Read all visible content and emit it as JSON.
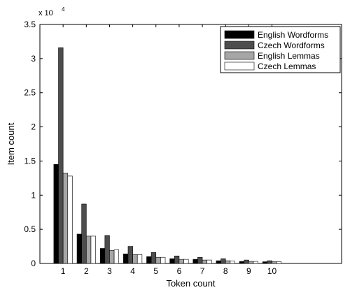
{
  "chart_data": {
    "type": "bar",
    "categories": [
      "1",
      "2",
      "3",
      "4",
      "5",
      "6",
      "7",
      "8",
      "9",
      "10"
    ],
    "series": [
      {
        "name": "English Wordforms",
        "color": "#000000",
        "values": [
          14500,
          4300,
          2200,
          1400,
          1000,
          700,
          600,
          400,
          300,
          250
        ]
      },
      {
        "name": "Czech Wordforms",
        "color": "#4d4d4d",
        "values": [
          31600,
          8700,
          4100,
          2500,
          1600,
          1100,
          900,
          700,
          500,
          400
        ]
      },
      {
        "name": "English Lemmas",
        "color": "#a6a6a6",
        "values": [
          13200,
          4000,
          1900,
          1300,
          900,
          600,
          500,
          400,
          300,
          250
        ]
      },
      {
        "name": "Czech Lemmas",
        "color": "#ffffff",
        "values": [
          12800,
          4000,
          2000,
          1300,
          900,
          600,
          500,
          350,
          300,
          250
        ]
      }
    ],
    "xlabel": "Token count",
    "ylabel": "Item count",
    "ylim": [
      0,
      35000
    ],
    "xlim": [
      0,
      13
    ],
    "y_ticks": [
      0,
      0.5,
      1,
      1.5,
      2,
      2.5,
      3,
      3.5
    ],
    "y_multiplier_label": "x 10",
    "y_multiplier_exp": "4",
    "legend_position": "top-right",
    "grid": false
  }
}
